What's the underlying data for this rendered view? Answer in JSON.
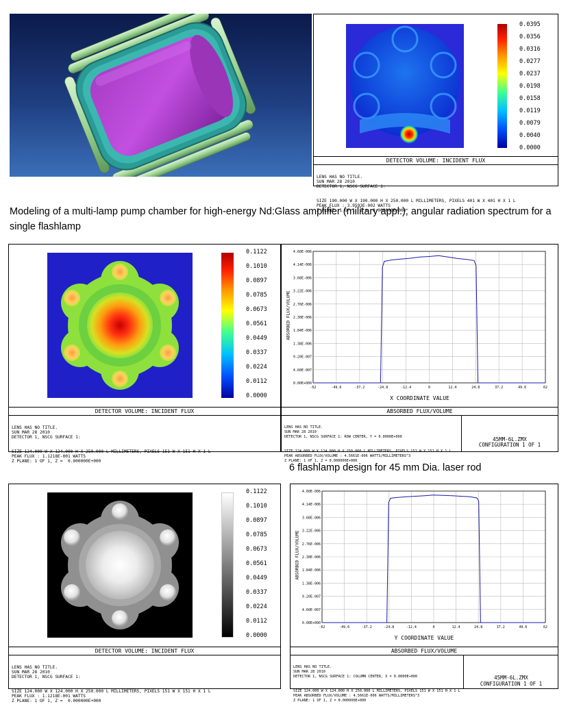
{
  "figure1": {
    "detector_title": "DETECTOR VOLUME: INCIDENT FLUX",
    "scale": [
      "0.0395",
      "0.0356",
      "0.0316",
      "0.0277",
      "0.0237",
      "0.0198",
      "0.0158",
      "0.0119",
      "0.0079",
      "0.0040",
      "0.0000"
    ],
    "info": [
      "LENS HAS NO TITLE.",
      "SUN MAR 28 2010",
      "DETECTOR 1, NSCG SURFACE 1:",
      "SIZE 190.000 W X 190.000 H X 250.000 L MILLIMETERS, PIXELS 401 W X 401 H X 1 L",
      "PEAK FLUX : 3.9593E-002 WATTS",
      "Z PLANE: 1 OF 1, Z =  0.000000E+000"
    ]
  },
  "caption1": "Modeling of a multi-lamp pump chamber for high-energy Nd:Glass amplifier (military appl.); angular radiation spectrum for a single flashlamp",
  "figure2": {
    "detector_title": "DETECTOR VOLUME: INCIDENT FLUX",
    "scale": [
      "0.1122",
      "0.1010",
      "0.0897",
      "0.0785",
      "0.0673",
      "0.0561",
      "0.0449",
      "0.0337",
      "0.0224",
      "0.0112",
      "0.0000"
    ],
    "info": [
      "LENS HAS NO TITLE.",
      "SUN MAR 28 2010",
      "DETECTOR 1, NSCG SURFACE 1:",
      "SIZE 124.000 W X 124.000 H X 250.000 L MILLIMETERS, PIXELS 151 W X 151 H X 1 L",
      "PEAK FLUX : 1.1218E-001 WATTS",
      "Z PLANE: 1 OF 1, Z =  0.000000E+000"
    ]
  },
  "plot2": {
    "ylabel": "ABSORBED FLUX/VOLUME",
    "xlabel": "X COORDINATE VALUE",
    "footer_title": "ABSORBED FLUX/VOLUME",
    "info": [
      "LENS HAS NO TITLE.",
      "SUN MAR 28 2010",
      "DETECTOR 1, NSCG SURFACE 1: ROW CENTER, Y = 0.0000E+000",
      "SIZE 124.000 W X 124.000 H X 250.000 L MILLIMETERS, PIXELS 151 W X 151 H X 1 L",
      "PEAK ABSORBED FLUX/VOLUME : 4.5661E-006 WATTS/MILLIMETERS^3",
      "Z PLANE: 1 OF 1, Z = 0.000000E+000"
    ],
    "file": "45MM-6L.ZMX",
    "config": "CONFIGURATION 1 OF 1"
  },
  "caption2": "6 flashlamp design for 45 mm Dia. laser rod",
  "figure3": {
    "detector_title": "DETECTOR VOLUME: INCIDENT FLUX",
    "scale": [
      "0.1122",
      "0.1010",
      "0.0897",
      "0.0785",
      "0.0673",
      "0.0561",
      "0.0449",
      "0.0337",
      "0.0224",
      "0.0112",
      "0.0000"
    ],
    "info": [
      "LENS HAS NO TITLE.",
      "SUN MAR 28 2010",
      "DETECTOR 1, NSCG SURFACE 1:",
      "SIZE 124.000 W X 124.000 H X 250.000 L MILLIMETERS, PIXELS 151 W X 151 H X 1 L",
      "PEAK FLUX : 1.1218E-001 WATTS",
      "Z PLANE: 1 OF 1, Z =  0.000000E+000"
    ]
  },
  "plot3": {
    "ylabel": "ABSORBED FLUX/VOLUME",
    "xlabel": "Y COORDINATE VALUE",
    "footer_title": "ABSORBED FLUX/VOLUME",
    "info": [
      "LENS HAS NO TITLE.",
      "SUN MAR 28 2010",
      "DETECTOR 1, NSCG SURFACE 1: COLUMN CENTER, X = 0.0000E+000",
      "SIZE 124.000 W X 124.000 H X 250.000 L MILLIMETERS, PIXELS 151 W X 151 H X 1 L",
      "PEAK ABSORBED FLUX/VOLUME : 4.5661E-006 WATTS/MILLIMETERS^3",
      "Z PLANE: 1 OF 1, Z = 0.000000E+000"
    ],
    "file": "45MM-6L.ZMX",
    "config": "CONFIGURATION 1 OF 1"
  },
  "chart_data": [
    {
      "type": "line",
      "ylabel": "ABSORBED FLUX/VOLUME",
      "xlabel": "X COORDINATE VALUE",
      "xticks": [
        "-62",
        "-49.6",
        "-37.2",
        "-24.8",
        "-12.4",
        "0",
        "12.4",
        "24.8",
        "37.2",
        "49.6",
        "62"
      ],
      "yticks": [
        "0.00E+000",
        "4.60E-007",
        "9.20E-007",
        "1.38E-006",
        "1.84E-006",
        "2.30E-006",
        "2.76E-006",
        "3.22E-006",
        "3.68E-006",
        "4.14E-006",
        "4.60E-006"
      ],
      "xlim": [
        -62,
        62
      ],
      "ylim": [
        0,
        4.6e-06
      ],
      "x": [
        -62,
        -26,
        -25,
        -24,
        -20,
        -15,
        -10,
        -5,
        0,
        5,
        10,
        15,
        20,
        24,
        25,
        26,
        62
      ],
      "y": [
        0,
        0,
        4.05e-06,
        4.25e-06,
        4.3e-06,
        4.33e-06,
        4.36e-06,
        4.4e-06,
        4.42e-06,
        4.45e-06,
        4.4e-06,
        4.35e-06,
        4.32e-06,
        4.28e-06,
        4.1e-06,
        0,
        0
      ]
    },
    {
      "type": "line",
      "ylabel": "ABSORBED FLUX/VOLUME",
      "xlabel": "Y COORDINATE VALUE",
      "xticks": [
        "-62",
        "-49.6",
        "-37.2",
        "-24.8",
        "-12.4",
        "0",
        "12.4",
        "24.8",
        "37.2",
        "49.6",
        "62"
      ],
      "yticks": [
        "0.00E+000",
        "4.60E-007",
        "9.20E-007",
        "1.38E-006",
        "1.84E-006",
        "2.30E-006",
        "2.76E-006",
        "3.22E-006",
        "3.68E-006",
        "4.14E-006",
        "4.60E-006"
      ],
      "xlim": [
        -62,
        62
      ],
      "ylim": [
        0,
        4.6e-06
      ],
      "x": [
        -62,
        -26,
        -25,
        -24,
        -20,
        -15,
        -10,
        -5,
        0,
        5,
        10,
        15,
        20,
        24,
        25,
        26,
        62
      ],
      "y": [
        0,
        0,
        4.2e-06,
        4.35e-06,
        4.38e-06,
        4.4e-06,
        4.42e-06,
        4.44e-06,
        4.46e-06,
        4.45e-06,
        4.44e-06,
        4.42e-06,
        4.4e-06,
        4.36e-06,
        4.25e-06,
        0,
        0
      ]
    }
  ]
}
